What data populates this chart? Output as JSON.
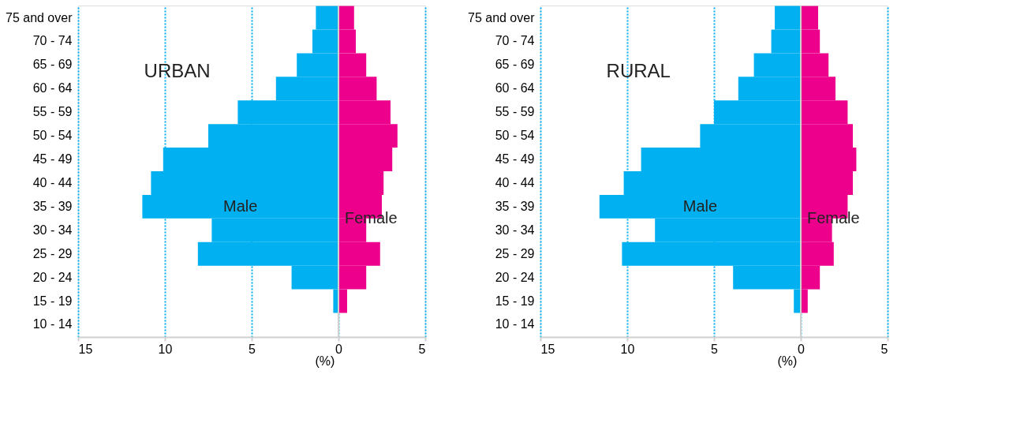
{
  "chart_data": [
    {
      "type": "bar",
      "title": "URBAN",
      "xlabel": "(%)",
      "orientation": "horizontal",
      "stacked": true,
      "categories": [
        "75 and over",
        "70 - 74",
        "65 - 69",
        "60 - 64",
        "55 - 59",
        "50 - 54",
        "45 - 49",
        "40 - 44",
        "35 - 39",
        "30 - 34",
        "25 - 29",
        "20 - 24",
        "15 - 19",
        "10 - 14"
      ],
      "series": [
        {
          "name": "Male",
          "color": "#00b0f0",
          "values": [
            -1.3,
            -1.5,
            -2.4,
            -3.6,
            -5.8,
            -7.5,
            -10.1,
            -10.8,
            -11.3,
            -7.3,
            -8.1,
            -2.7,
            -0.3,
            null
          ]
        },
        {
          "name": "Female",
          "color": "#ec008c",
          "values": [
            0.9,
            1.0,
            1.6,
            2.2,
            3.0,
            3.4,
            3.1,
            2.6,
            2.5,
            1.6,
            2.4,
            1.6,
            0.5,
            null
          ]
        }
      ],
      "xlim": [
        -15,
        5
      ],
      "xticks": [
        {
          "value": -15,
          "label": "15"
        },
        {
          "value": -10,
          "label": "10"
        },
        {
          "value": -5,
          "label": "5"
        },
        0,
        5
      ],
      "grid": "x"
    },
    {
      "type": "bar",
      "title": "RURAL",
      "xlabel": "(%)",
      "orientation": "horizontal",
      "stacked": true,
      "categories": [
        "75 and over",
        "70 - 74",
        "65 - 69",
        "60 - 64",
        "55 - 59",
        "50 - 54",
        "45 - 49",
        "40 - 44",
        "35 - 39",
        "30 - 34",
        "25 - 29",
        "20 - 24",
        "15 - 19",
        "10 - 14"
      ],
      "series": [
        {
          "name": "Male",
          "color": "#00b0f0",
          "values": [
            -1.5,
            -1.7,
            -2.7,
            -3.6,
            -5.0,
            -5.8,
            -9.2,
            -10.2,
            -11.6,
            -8.4,
            -10.3,
            -3.9,
            -0.4,
            null
          ]
        },
        {
          "name": "Female",
          "color": "#ec008c",
          "values": [
            1.0,
            1.1,
            1.6,
            2.0,
            2.7,
            3.0,
            3.2,
            3.0,
            2.7,
            1.8,
            1.9,
            1.1,
            0.4,
            null
          ]
        }
      ],
      "xlim": [
        -15,
        5
      ],
      "xticks": [
        {
          "value": -15,
          "label": "15"
        },
        {
          "value": -10,
          "label": "10"
        },
        {
          "value": -5,
          "label": "5"
        },
        0,
        5
      ],
      "grid": "x"
    }
  ]
}
